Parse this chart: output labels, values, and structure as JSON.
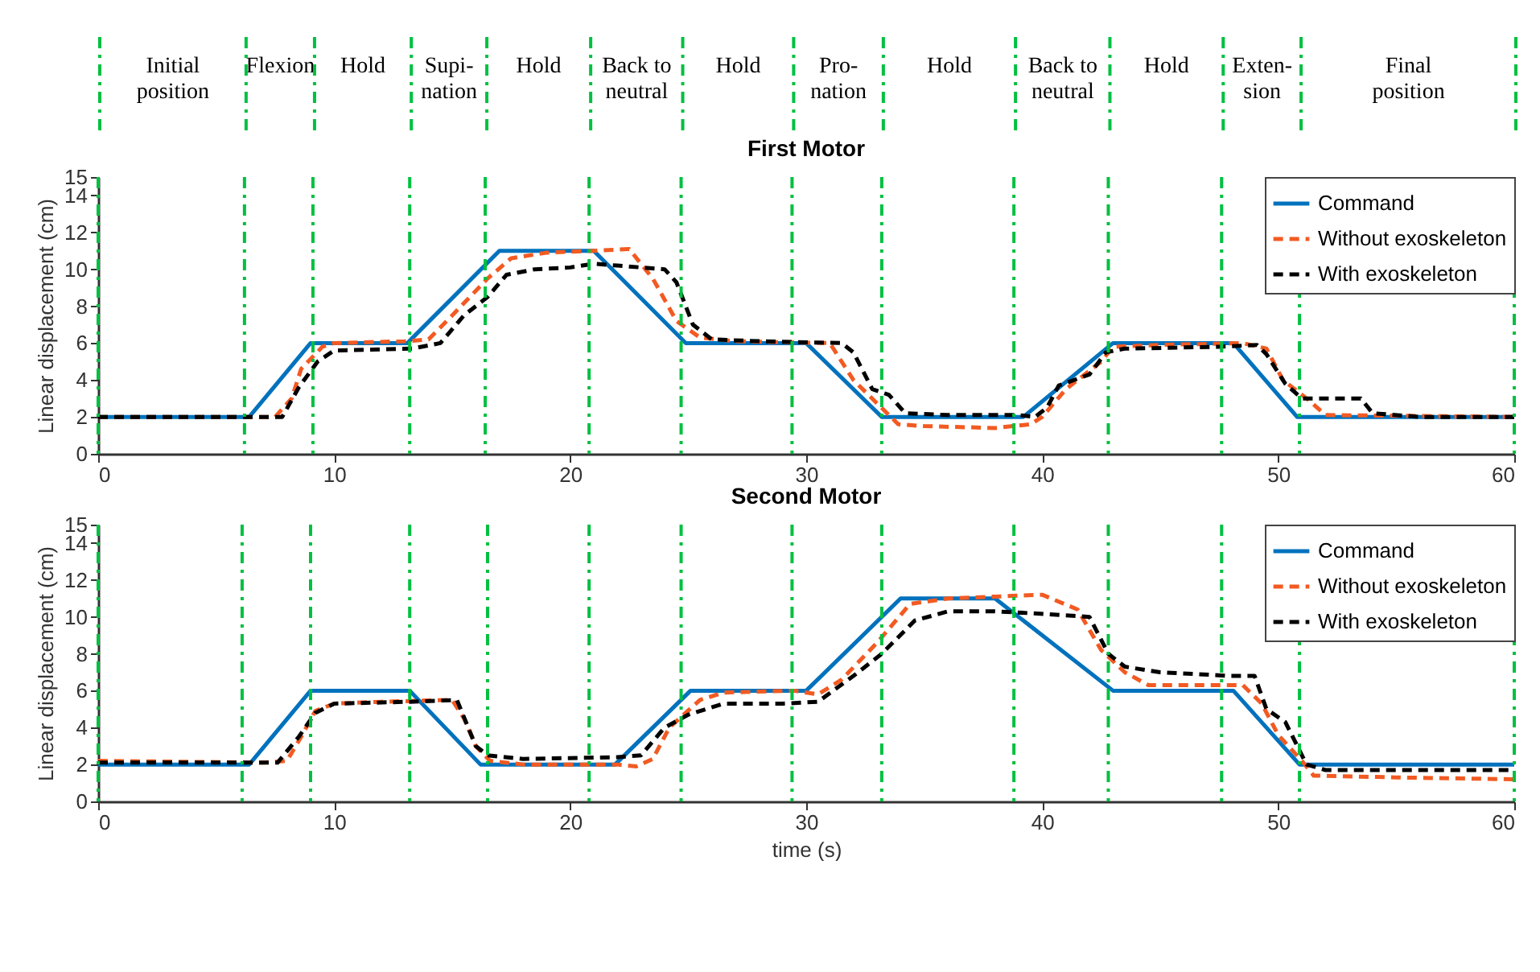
{
  "chart_data": [
    {
      "type": "line",
      "title": "First Motor",
      "ylabel": "Linear displacement (cm)",
      "xlim": [
        0,
        60
      ],
      "xticks": [
        0,
        10,
        20,
        30,
        40,
        50,
        60
      ],
      "ylim": [
        0,
        15
      ],
      "yticks": [
        0,
        2,
        4,
        6,
        8,
        10,
        12,
        14,
        15
      ],
      "grid": false,
      "legend": "top right",
      "annotations": [
        "Initial\nposition",
        "Flexion",
        "Hold",
        "Supi-\nnation",
        "Hold",
        "Back to\nneutral",
        "Hold",
        "Pro-\nnation",
        "Hold",
        "Back to\nneutral",
        "Hold",
        "Exten-\nsion",
        "Final\nposition"
      ],
      "ref_lines": [
        {
          "axis": "x",
          "value": 0,
          "color": "#00c040",
          "line_style": "dashed"
        },
        {
          "axis": "x",
          "value": 6.2,
          "color": "#00c040",
          "line_style": "dashed"
        },
        {
          "axis": "x",
          "value": 9.1,
          "color": "#00c040",
          "line_style": "dashed"
        },
        {
          "axis": "x",
          "value": 13.2,
          "color": "#00c040",
          "line_style": "dashed"
        },
        {
          "axis": "x",
          "value": 16.4,
          "color": "#00c040",
          "line_style": "dashed"
        },
        {
          "axis": "x",
          "value": 20.8,
          "color": "#00c040",
          "line_style": "dashed"
        },
        {
          "axis": "x",
          "value": 24.7,
          "color": "#00c040",
          "line_style": "dashed"
        },
        {
          "axis": "x",
          "value": 29.4,
          "color": "#00c040",
          "line_style": "dashed"
        },
        {
          "axis": "x",
          "value": 33.2,
          "color": "#00c040",
          "line_style": "dashed"
        },
        {
          "axis": "x",
          "value": 38.8,
          "color": "#00c040",
          "line_style": "dashed"
        },
        {
          "axis": "x",
          "value": 42.8,
          "color": "#00c040",
          "line_style": "dashed"
        },
        {
          "axis": "x",
          "value": 47.6,
          "color": "#00c040",
          "line_style": "dashed"
        },
        {
          "axis": "x",
          "value": 50.9,
          "color": "#00c040",
          "line_style": "dashed"
        },
        {
          "axis": "x",
          "value": 60,
          "color": "#00c040",
          "line_style": "dashed"
        }
      ],
      "series": [
        {
          "name": "Command",
          "color": "#0072bd",
          "line_style": "solid",
          "x": [
            0,
            6.4,
            9,
            13.1,
            17,
            21,
            24.9,
            30,
            33.2,
            39.2,
            43,
            48.1,
            50.8,
            60
          ],
          "values": [
            2,
            2,
            6,
            6,
            11,
            11,
            6,
            6,
            2,
            2,
            6,
            6,
            2,
            2
          ]
        },
        {
          "name": "Without exoskeleton",
          "color": "#f25a22",
          "line_style": "dashed",
          "x": [
            0,
            7,
            7.5,
            8.2,
            8.6,
            9.5,
            10,
            13,
            14,
            15,
            16.5,
            17.5,
            19,
            21,
            22.5,
            23.5,
            24.5,
            25.5,
            27,
            31,
            32,
            33.9,
            35,
            38,
            39.5,
            40,
            41,
            42.5,
            43,
            45,
            48.5,
            49.5,
            50.2,
            51.3,
            52,
            60
          ],
          "values": [
            2,
            2,
            2,
            3,
            4.6,
            5.8,
            6,
            6.1,
            6.2,
            7.5,
            9.5,
            10.6,
            10.9,
            11,
            11.1,
            9.5,
            7.2,
            6.3,
            6.1,
            6,
            4,
            1.6,
            1.5,
            1.4,
            1.6,
            2,
            3.5,
            5,
            5.8,
            5.9,
            6,
            5.7,
            4,
            2.9,
            2.1,
            2
          ]
        },
        {
          "name": "With exoskeleton",
          "color": "#000000",
          "line_style": "dashed",
          "x": [
            0,
            7.8,
            8.5,
            9.3,
            10,
            13.3,
            14.5,
            15.5,
            16.5,
            17.3,
            18.5,
            20,
            21,
            22,
            24,
            24.5,
            25.2,
            26,
            28,
            31.5,
            32,
            32.8,
            33.5,
            34.2,
            36,
            39,
            39.7,
            40.2,
            40.7,
            42,
            42.7,
            43.5,
            47.5,
            49.1,
            49.5,
            50.3,
            51,
            53.5,
            54,
            56,
            60
          ],
          "values": [
            2,
            2,
            3.6,
            5,
            5.6,
            5.7,
            6,
            7.5,
            8.5,
            9.7,
            10,
            10.1,
            10.3,
            10.2,
            10,
            9.3,
            7,
            6.2,
            6.1,
            6,
            5.5,
            3.5,
            3.2,
            2.2,
            2.1,
            2.1,
            2,
            2.5,
            3.7,
            4.3,
            5.5,
            5.7,
            5.8,
            5.9,
            5.4,
            3.8,
            3,
            3,
            2.2,
            2,
            2
          ]
        }
      ]
    },
    {
      "type": "line",
      "title": "Second Motor",
      "xlabel": "time (s)",
      "ylabel": "Linear displacement (cm)",
      "xlim": [
        0,
        60
      ],
      "xticks": [
        0,
        10,
        20,
        30,
        40,
        50,
        60
      ],
      "ylim": [
        0,
        15
      ],
      "yticks": [
        0,
        2,
        4,
        6,
        8,
        10,
        12,
        14,
        15
      ],
      "grid": false,
      "legend": "top right",
      "ref_lines": [
        {
          "axis": "x",
          "value": 0,
          "color": "#00c040",
          "line_style": "dashed"
        },
        {
          "axis": "x",
          "value": 6.1,
          "color": "#00c040",
          "line_style": "dashed"
        },
        {
          "axis": "x",
          "value": 9,
          "color": "#00c040",
          "line_style": "dashed"
        },
        {
          "axis": "x",
          "value": 13.2,
          "color": "#00c040",
          "line_style": "dashed"
        },
        {
          "axis": "x",
          "value": 16.5,
          "color": "#00c040",
          "line_style": "dashed"
        },
        {
          "axis": "x",
          "value": 20.8,
          "color": "#00c040",
          "line_style": "dashed"
        },
        {
          "axis": "x",
          "value": 24.7,
          "color": "#00c040",
          "line_style": "dashed"
        },
        {
          "axis": "x",
          "value": 29.4,
          "color": "#00c040",
          "line_style": "dashed"
        },
        {
          "axis": "x",
          "value": 33.2,
          "color": "#00c040",
          "line_style": "dashed"
        },
        {
          "axis": "x",
          "value": 38.8,
          "color": "#00c040",
          "line_style": "dashed"
        },
        {
          "axis": "x",
          "value": 42.8,
          "color": "#00c040",
          "line_style": "dashed"
        },
        {
          "axis": "x",
          "value": 47.6,
          "color": "#00c040",
          "line_style": "dashed"
        },
        {
          "axis": "x",
          "value": 50.9,
          "color": "#00c040",
          "line_style": "dashed"
        },
        {
          "axis": "x",
          "value": 60,
          "color": "#00c040",
          "line_style": "dashed"
        }
      ],
      "series": [
        {
          "name": "Command",
          "color": "#0072bd",
          "line_style": "solid",
          "x": [
            0,
            6.4,
            9,
            13.2,
            16.2,
            21.9,
            25.1,
            30,
            34,
            38,
            43,
            48.1,
            50.9,
            60
          ],
          "values": [
            2,
            2,
            6,
            6,
            2,
            2,
            6,
            6,
            11,
            11,
            6,
            6,
            2,
            2
          ]
        },
        {
          "name": "Without exoskeleton",
          "color": "#f25a22",
          "line_style": "dashed",
          "x": [
            0,
            7,
            8,
            8.6,
            9.2,
            10,
            12,
            15,
            15.5,
            16,
            16.6,
            18,
            22,
            22.8,
            23.5,
            24.2,
            25.5,
            26.5,
            29.5,
            30.5,
            31.5,
            33,
            34.4,
            36,
            38,
            40,
            41.5,
            42.5,
            43.5,
            44.5,
            48.5,
            49.3,
            50,
            51,
            51.5,
            55,
            60
          ],
          "values": [
            2.2,
            2.1,
            2.2,
            3.5,
            4.9,
            5.3,
            5.4,
            5.5,
            4.5,
            3,
            2.2,
            2,
            2,
            1.9,
            2.3,
            4,
            5.5,
            5.9,
            6,
            5.8,
            6.6,
            8.6,
            10.7,
            11,
            11.1,
            11.2,
            10.4,
            8.2,
            7,
            6.3,
            6.3,
            5.3,
            3.6,
            2.2,
            1.4,
            1.3,
            1.2
          ]
        },
        {
          "name": "With exoskeleton",
          "color": "#000000",
          "line_style": "dashed",
          "x": [
            0,
            7.6,
            8.5,
            9.2,
            10,
            13.2,
            15.2,
            16,
            16.5,
            18,
            22,
            23,
            24,
            25,
            26.5,
            29,
            30.5,
            32,
            33.2,
            34.6,
            36,
            38,
            39.5,
            42,
            42.8,
            43.5,
            45,
            48,
            49,
            49.5,
            50.3,
            51.2,
            52,
            60
          ],
          "values": [
            2.1,
            2.1,
            3.5,
            4.8,
            5.3,
            5.4,
            5.5,
            3,
            2.5,
            2.3,
            2.4,
            2.5,
            4,
            4.7,
            5.3,
            5.3,
            5.4,
            6.8,
            8,
            9.8,
            10.3,
            10.3,
            10.2,
            10,
            8,
            7.3,
            7,
            6.8,
            6.8,
            5,
            4.3,
            2,
            1.7,
            1.7
          ]
        }
      ]
    }
  ]
}
